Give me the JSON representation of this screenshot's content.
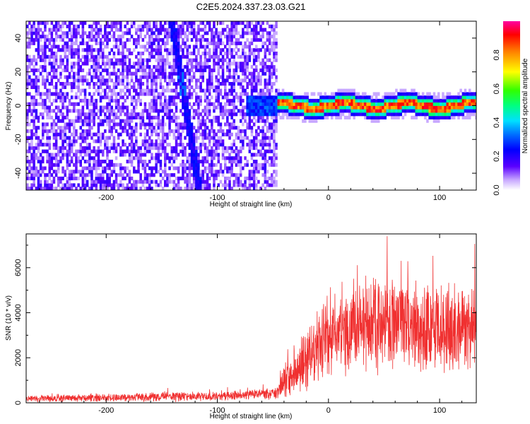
{
  "title": "C2E5.2024.337.23.03.G21",
  "chart_data": [
    {
      "type": "heatmap",
      "xlabel": "Height of straight line (km)",
      "ylabel": "Frequency (Hz)",
      "xlim": [
        -272,
        133
      ],
      "ylim": [
        -50,
        50
      ],
      "xticks": [
        -200,
        -100,
        0,
        100
      ],
      "yticks": [
        -40,
        -20,
        0,
        20,
        40
      ],
      "colorbar": {
        "label": "Normalized spectral amplitude",
        "range": [
          0,
          1
        ],
        "ticks": [
          0.0,
          0.2,
          0.4,
          0.6,
          0.8
        ]
      }
    },
    {
      "type": "line",
      "xlabel": "Height of straight line (km)",
      "ylabel": "SNR (10 * v/v)",
      "xlim": [
        -272,
        133
      ],
      "ylim": [
        0,
        7500
      ],
      "xticks": [
        -200,
        -100,
        0,
        100
      ],
      "yticks": [
        0,
        2000,
        4000,
        6000
      ],
      "line_color": "#f03030",
      "envelope": {
        "x": [
          -272,
          -200,
          -160,
          -140,
          -120,
          -100,
          -80,
          -60,
          -46,
          -40,
          -30,
          -20,
          -10,
          0,
          10,
          20,
          30,
          40,
          60,
          80,
          100,
          120,
          133
        ],
        "base": [
          180,
          220,
          250,
          300,
          280,
          300,
          330,
          380,
          420,
          900,
          1400,
          2000,
          2500,
          2800,
          3100,
          3300,
          3500,
          3600,
          3600,
          3500,
          3400,
          3200,
          3300
        ],
        "spread": [
          180,
          200,
          220,
          300,
          230,
          230,
          250,
          280,
          300,
          900,
          1300,
          1600,
          1800,
          2000,
          2100,
          2200,
          2500,
          2600,
          2500,
          2300,
          2200,
          2000,
          2100
        ]
      }
    }
  ]
}
